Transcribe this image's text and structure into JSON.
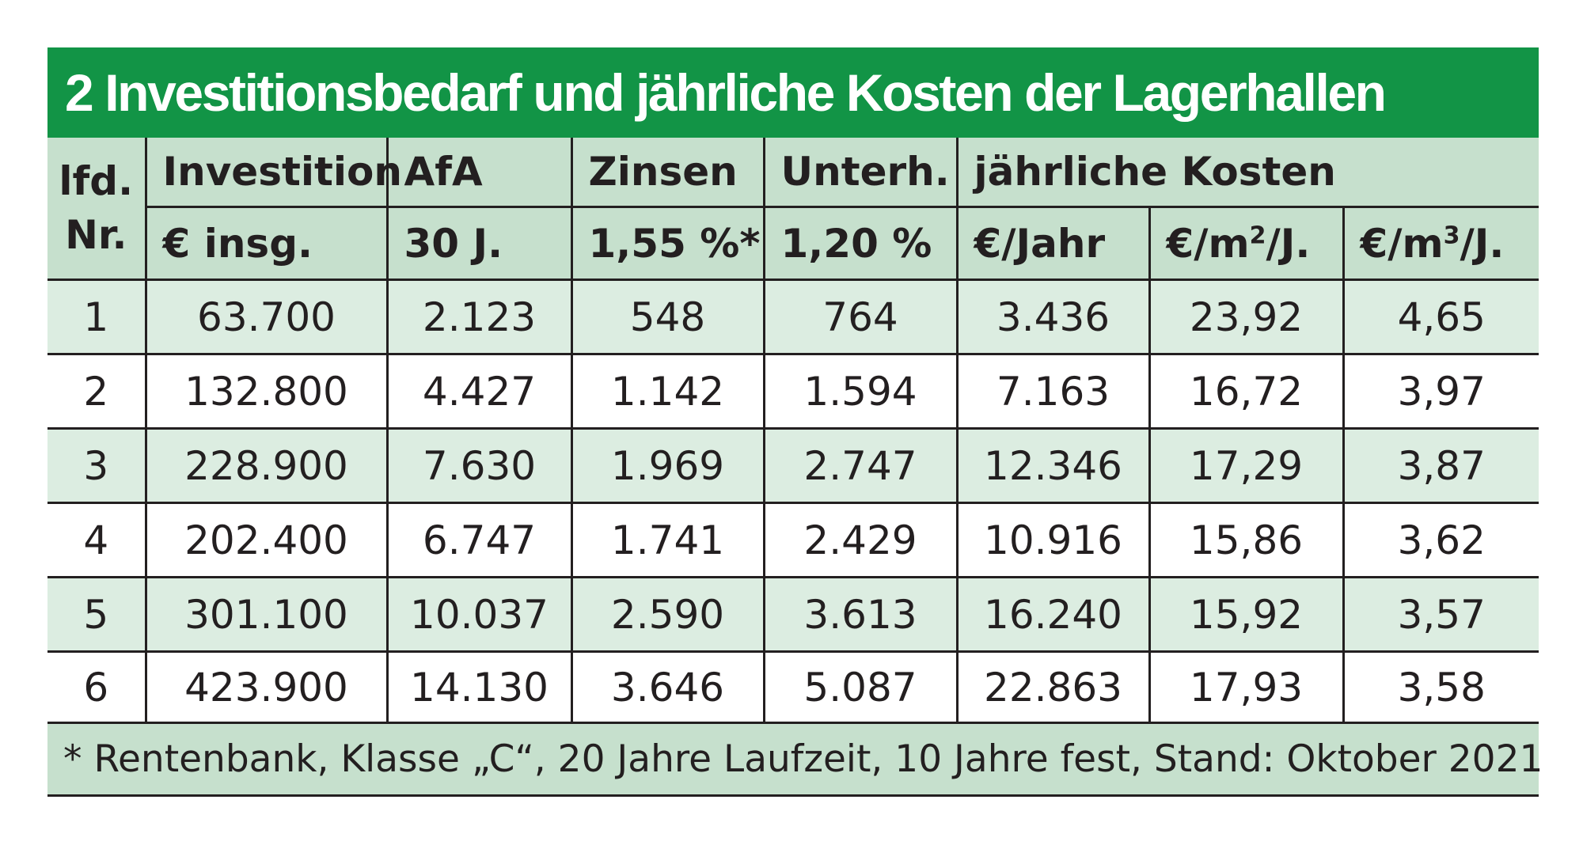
{
  "title": "2 Investitionsbedarf und jährliche Kosten der Lagerhallen",
  "colors": {
    "title_bg": "#129446",
    "header_bg": "#c6e0cd",
    "shaded_row_bg": "#dcede1",
    "text": "#231f20"
  },
  "header": {
    "nr_line1": "lfd.",
    "nr_line2": "Nr.",
    "investition": "Investition",
    "investition_unit": "€ insg.",
    "afa": "AfA",
    "afa_unit": "30 J.",
    "zinsen": "Zinsen",
    "zinsen_unit": "1,55 %*",
    "unterh": "Unterh.",
    "unterh_unit": "1,20 %",
    "kosten": "jährliche Kosten",
    "kosten_jahr": "€/Jahr",
    "kosten_m2_prefix": "€/m",
    "kosten_m2_sup": "2",
    "kosten_m2_suffix": "/J.",
    "kosten_m3_prefix": "€/m",
    "kosten_m3_sup": "3",
    "kosten_m3_suffix": "/J."
  },
  "rows": [
    [
      "1",
      "63.700",
      "2.123",
      "548",
      "764",
      "3.436",
      "23,92",
      "4,65"
    ],
    [
      "2",
      "132.800",
      "4.427",
      "1.142",
      "1.594",
      "7.163",
      "16,72",
      "3,97"
    ],
    [
      "3",
      "228.900",
      "7.630",
      "1.969",
      "2.747",
      "12.346",
      "17,29",
      "3,87"
    ],
    [
      "4",
      "202.400",
      "6.747",
      "1.741",
      "2.429",
      "10.916",
      "15,86",
      "3,62"
    ],
    [
      "5",
      "301.100",
      "10.037",
      "2.590",
      "3.613",
      "16.240",
      "15,92",
      "3,57"
    ],
    [
      "6",
      "423.900",
      "14.130",
      "3.646",
      "5.087",
      "22.863",
      "17,93",
      "3,58"
    ]
  ],
  "footnote": "* Rentenbank, Klasse „C“, 20 Jahre Laufzeit, 10 Jahre fest, Stand:  Oktober 2021"
}
